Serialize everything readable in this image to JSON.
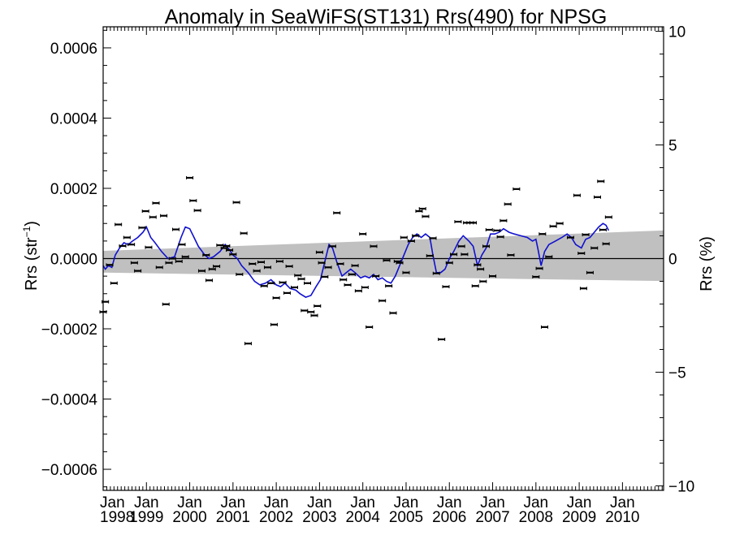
{
  "chart_data": {
    "type": "scatter",
    "title": "Anomaly in SeaWiFS(ST131) Rrs(490) for NPSG",
    "ylabel_left_main": "Rrs (str",
    "ylabel_left_sup": "−1",
    "ylabel_left_close": ")",
    "ylabel_right": "Rrs (%)",
    "xlabel": "",
    "x_range": [
      1998.0,
      2010.95
    ],
    "ylim_left": [
      -0.00066,
      0.00066
    ],
    "ylim_right": [
      -10.2,
      10.2
    ],
    "left_ticks": [
      {
        "value": 0.0006,
        "label": "0.0006"
      },
      {
        "value": 0.0004,
        "label": "0.0004"
      },
      {
        "value": 0.0002,
        "label": "0.0002"
      },
      {
        "value": 0.0,
        "label": "0.0000"
      },
      {
        "value": -0.0002,
        "label": "−0.0002"
      },
      {
        "value": -0.0004,
        "label": "−0.0004"
      },
      {
        "value": -0.0006,
        "label": "−0.0006"
      }
    ],
    "right_ticks": [
      {
        "value": 10,
        "label": "10"
      },
      {
        "value": 5,
        "label": "5"
      },
      {
        "value": 0,
        "label": "0"
      },
      {
        "value": -5,
        "label": "−5"
      },
      {
        "value": -10,
        "label": "−10"
      }
    ],
    "x_ticks": [
      {
        "value": 1998,
        "month": "Jan",
        "year": "1998"
      },
      {
        "value": 1999,
        "month": "Jan",
        "year": "1999"
      },
      {
        "value": 2000,
        "month": "Jan",
        "year": "2000"
      },
      {
        "value": 2001,
        "month": "Jan",
        "year": "2001"
      },
      {
        "value": 2002,
        "month": "Jan",
        "year": "2002"
      },
      {
        "value": 2003,
        "month": "Jan",
        "year": "2003"
      },
      {
        "value": 2004,
        "month": "Jan",
        "year": "2004"
      },
      {
        "value": 2005,
        "month": "Jan",
        "year": "2005"
      },
      {
        "value": 2006,
        "month": "Jan",
        "year": "2006"
      },
      {
        "value": 2007,
        "month": "Jan",
        "year": "2007"
      },
      {
        "value": 2008,
        "month": "Jan",
        "year": "2008"
      },
      {
        "value": 2009,
        "month": "Jan",
        "year": "2009"
      },
      {
        "value": 2010,
        "month": "Jan",
        "year": "2010"
      }
    ],
    "zero_line": 0,
    "confidence_band": {
      "start": {
        "x": 1998.0,
        "upper": 2.2e-05,
        "lower": -4e-05
      },
      "end": {
        "x": 2010.95,
        "upper": 8e-05,
        "lower": -6.4e-05
      }
    },
    "colors": {
      "running_mean": "#1010d0",
      "points": "#000000",
      "band": "#c0c0c0",
      "zero_line": "#000000"
    },
    "points": [
      {
        "x": 1998.0,
        "y": -0.000152
      },
      {
        "x": 1998.05,
        "y": -0.000123
      },
      {
        "x": 1998.15,
        "y": -1.8e-05
      },
      {
        "x": 1998.25,
        "y": -7e-05
      },
      {
        "x": 1998.35,
        "y": 9.7e-05
      },
      {
        "x": 1998.45,
        "y": 3.6e-05
      },
      {
        "x": 1998.55,
        "y": 6e-05
      },
      {
        "x": 1998.65,
        "y": 4e-05
      },
      {
        "x": 1998.72,
        "y": -1.2e-05
      },
      {
        "x": 1998.8,
        "y": -3.5e-05
      },
      {
        "x": 1998.9,
        "y": 8.8e-05
      },
      {
        "x": 1998.98,
        "y": 0.000135
      },
      {
        "x": 1999.05,
        "y": 3.2e-05
      },
      {
        "x": 1999.15,
        "y": 0.000118
      },
      {
        "x": 1999.22,
        "y": 0.000158
      },
      {
        "x": 1999.3,
        "y": -2.5e-05
      },
      {
        "x": 1999.4,
        "y": 0.000122
      },
      {
        "x": 1999.45,
        "y": -0.00013
      },
      {
        "x": 1999.52,
        "y": -1.2e-05
      },
      {
        "x": 1999.6,
        "y": 0.0
      },
      {
        "x": 1999.68,
        "y": 8.3e-05
      },
      {
        "x": 1999.75,
        "y": -8e-06
      },
      {
        "x": 1999.82,
        "y": 4e-05
      },
      {
        "x": 1999.9,
        "y": 5e-06
      },
      {
        "x": 2000.0,
        "y": 0.00023
      },
      {
        "x": 2000.08,
        "y": 0.000165
      },
      {
        "x": 2000.18,
        "y": 0.000137
      },
      {
        "x": 2000.28,
        "y": -3.5e-05
      },
      {
        "x": 2000.38,
        "y": 1e-05
      },
      {
        "x": 2000.45,
        "y": -6.2e-05
      },
      {
        "x": 2000.52,
        "y": -3e-05
      },
      {
        "x": 2000.62,
        "y": -2.2e-05
      },
      {
        "x": 2000.7,
        "y": 3.8e-05
      },
      {
        "x": 2000.8,
        "y": 3e-05
      },
      {
        "x": 2000.85,
        "y": 3.6e-05
      },
      {
        "x": 2000.92,
        "y": 2.4e-05
      },
      {
        "x": 2001.0,
        "y": 1.2e-05
      },
      {
        "x": 2001.08,
        "y": 0.00016
      },
      {
        "x": 2001.15,
        "y": -4.5e-05
      },
      {
        "x": 2001.25,
        "y": 7.2e-05
      },
      {
        "x": 2001.35,
        "y": -0.000242
      },
      {
        "x": 2001.45,
        "y": -1.5e-05
      },
      {
        "x": 2001.55,
        "y": -3.5e-05
      },
      {
        "x": 2001.65,
        "y": -1e-05
      },
      {
        "x": 2001.72,
        "y": -7.8e-05
      },
      {
        "x": 2001.8,
        "y": -2.5e-05
      },
      {
        "x": 2001.88,
        "y": -7e-05
      },
      {
        "x": 2001.95,
        "y": -0.000188
      },
      {
        "x": 2002.0,
        "y": -0.000112
      },
      {
        "x": 2002.08,
        "y": -8e-06
      },
      {
        "x": 2002.15,
        "y": -6.8e-05
      },
      {
        "x": 2002.25,
        "y": -9.8e-05
      },
      {
        "x": 2002.3,
        "y": -2.2e-05
      },
      {
        "x": 2002.42,
        "y": -8.2e-05
      },
      {
        "x": 2002.5,
        "y": -4.8e-05
      },
      {
        "x": 2002.58,
        "y": -5.8e-05
      },
      {
        "x": 2002.65,
        "y": -0.000148
      },
      {
        "x": 2002.72,
        "y": -7e-05
      },
      {
        "x": 2002.8,
        "y": -0.000152
      },
      {
        "x": 2002.88,
        "y": -0.000162
      },
      {
        "x": 2002.95,
        "y": -0.000135
      },
      {
        "x": 2003.0,
        "y": 1.8e-05
      },
      {
        "x": 2003.05,
        "y": -1.2e-05
      },
      {
        "x": 2003.12,
        "y": -5.2e-05
      },
      {
        "x": 2003.2,
        "y": -2.5e-05
      },
      {
        "x": 2003.3,
        "y": 3.5e-05
      },
      {
        "x": 2003.4,
        "y": 0.00013
      },
      {
        "x": 2003.48,
        "y": -1.5e-05
      },
      {
        "x": 2003.55,
        "y": -6e-05
      },
      {
        "x": 2003.65,
        "y": -7.5e-05
      },
      {
        "x": 2003.75,
        "y": -4.5e-05
      },
      {
        "x": 2003.82,
        "y": -2e-05
      },
      {
        "x": 2003.9,
        "y": -9.2e-05
      },
      {
        "x": 2004.0,
        "y": 7e-05
      },
      {
        "x": 2004.05,
        "y": -8.2e-05
      },
      {
        "x": 2004.15,
        "y": -0.000195
      },
      {
        "x": 2004.25,
        "y": 3.5e-05
      },
      {
        "x": 2004.3,
        "y": -5e-05
      },
      {
        "x": 2004.45,
        "y": -0.00012
      },
      {
        "x": 2004.55,
        "y": -5e-06
      },
      {
        "x": 2004.6,
        "y": -7.8e-05
      },
      {
        "x": 2004.7,
        "y": -0.000155
      },
      {
        "x": 2004.8,
        "y": -8e-06
      },
      {
        "x": 2004.85,
        "y": -1.2e-05
      },
      {
        "x": 2004.95,
        "y": 6e-05
      },
      {
        "x": 2005.0,
        "y": -4e-05
      },
      {
        "x": 2005.12,
        "y": 5e-05
      },
      {
        "x": 2005.22,
        "y": 6.5e-05
      },
      {
        "x": 2005.3,
        "y": 0.000135
      },
      {
        "x": 2005.38,
        "y": 0.000142
      },
      {
        "x": 2005.45,
        "y": 0.00012
      },
      {
        "x": 2005.55,
        "y": 8e-06
      },
      {
        "x": 2005.62,
        "y": 5.8e-05
      },
      {
        "x": 2005.7,
        "y": -4.2e-05
      },
      {
        "x": 2005.82,
        "y": -0.00023
      },
      {
        "x": 2005.92,
        "y": -8e-05
      },
      {
        "x": 2006.0,
        "y": -1.2e-05
      },
      {
        "x": 2006.1,
        "y": 1.2e-05
      },
      {
        "x": 2006.2,
        "y": 0.000105
      },
      {
        "x": 2006.28,
        "y": 3.5e-05
      },
      {
        "x": 2006.35,
        "y": 1.2e-05
      },
      {
        "x": 2006.4,
        "y": 0.000102
      },
      {
        "x": 2006.48,
        "y": 0.000102
      },
      {
        "x": 2006.55,
        "y": 0.000102
      },
      {
        "x": 2006.6,
        "y": -7.8e-05
      },
      {
        "x": 2006.65,
        "y": -1.8e-05
      },
      {
        "x": 2006.72,
        "y": -3e-05
      },
      {
        "x": 2006.78,
        "y": -6.5e-05
      },
      {
        "x": 2006.85,
        "y": 3.5e-05
      },
      {
        "x": 2006.92,
        "y": 8.2e-05
      },
      {
        "x": 2007.0,
        "y": -5e-05
      },
      {
        "x": 2007.1,
        "y": 8e-05
      },
      {
        "x": 2007.18,
        "y": 6.2e-05
      },
      {
        "x": 2007.25,
        "y": 0.000108
      },
      {
        "x": 2007.35,
        "y": 0.000155
      },
      {
        "x": 2007.42,
        "y": 1e-05
      },
      {
        "x": 2007.55,
        "y": 0.000198
      },
      {
        "x": 2008.0,
        "y": -5.2e-05
      },
      {
        "x": 2008.08,
        "y": -2.8e-05
      },
      {
        "x": 2008.15,
        "y": 7e-05
      },
      {
        "x": 2008.2,
        "y": -0.000195
      },
      {
        "x": 2008.3,
        "y": 5e-06
      },
      {
        "x": 2008.4,
        "y": 9.2e-05
      },
      {
        "x": 2008.55,
        "y": 0.0001
      },
      {
        "x": 2008.8,
        "y": 6e-05
      },
      {
        "x": 2008.95,
        "y": 0.00018
      },
      {
        "x": 2009.05,
        "y": 1.5e-05
      },
      {
        "x": 2009.1,
        "y": -8.5e-05
      },
      {
        "x": 2009.15,
        "y": 6.8e-05
      },
      {
        "x": 2009.25,
        "y": -4e-05
      },
      {
        "x": 2009.35,
        "y": 3e-05
      },
      {
        "x": 2009.42,
        "y": 0.000175
      },
      {
        "x": 2009.5,
        "y": 0.00022
      },
      {
        "x": 2009.55,
        "y": 8.2e-05
      },
      {
        "x": 2009.62,
        "y": 4.2e-05
      },
      {
        "x": 2009.68,
        "y": 0.000118
      }
    ],
    "running_mean": [
      {
        "x": 1998.0,
        "y": -2e-05
      },
      {
        "x": 1998.05,
        "y": -3e-05
      },
      {
        "x": 1998.12,
        "y": -2e-05
      },
      {
        "x": 1998.2,
        "y": -2.5e-05
      },
      {
        "x": 1998.28,
        "y": 1e-05
      },
      {
        "x": 1998.38,
        "y": 3e-05
      },
      {
        "x": 1998.48,
        "y": 4.5e-05
      },
      {
        "x": 1998.58,
        "y": 4e-05
      },
      {
        "x": 1998.68,
        "y": 5e-05
      },
      {
        "x": 1998.8,
        "y": 6e-05
      },
      {
        "x": 1998.92,
        "y": 7.5e-05
      },
      {
        "x": 1999.0,
        "y": 9e-05
      },
      {
        "x": 1999.1,
        "y": 6e-05
      },
      {
        "x": 1999.2,
        "y": 4.5e-05
      },
      {
        "x": 1999.35,
        "y": 2e-05
      },
      {
        "x": 1999.5,
        "y": 0.0
      },
      {
        "x": 1999.65,
        "y": 5e-06
      },
      {
        "x": 1999.8,
        "y": 6e-05
      },
      {
        "x": 1999.9,
        "y": 9e-05
      },
      {
        "x": 2000.0,
        "y": 8.5e-05
      },
      {
        "x": 2000.1,
        "y": 6e-05
      },
      {
        "x": 2000.2,
        "y": 3.5e-05
      },
      {
        "x": 2000.35,
        "y": 1e-05
      },
      {
        "x": 2000.45,
        "y": 0.0
      },
      {
        "x": 2000.55,
        "y": 5e-06
      },
      {
        "x": 2000.7,
        "y": 2e-05
      },
      {
        "x": 2000.82,
        "y": 4e-05
      },
      {
        "x": 2000.92,
        "y": 2.5e-05
      },
      {
        "x": 2001.0,
        "y": 1e-05
      },
      {
        "x": 2001.1,
        "y": 0.0
      },
      {
        "x": 2001.2,
        "y": -2e-05
      },
      {
        "x": 2001.35,
        "y": -4e-05
      },
      {
        "x": 2001.5,
        "y": -6.5e-05
      },
      {
        "x": 2001.62,
        "y": -7.5e-05
      },
      {
        "x": 2001.75,
        "y": -7e-05
      },
      {
        "x": 2001.88,
        "y": -6e-05
      },
      {
        "x": 2002.0,
        "y": -7.5e-05
      },
      {
        "x": 2002.1,
        "y": -8e-05
      },
      {
        "x": 2002.2,
        "y": -7e-05
      },
      {
        "x": 2002.32,
        "y": -8.5e-05
      },
      {
        "x": 2002.45,
        "y": -9e-05
      },
      {
        "x": 2002.55,
        "y": -0.0001
      },
      {
        "x": 2002.68,
        "y": -0.00011
      },
      {
        "x": 2002.8,
        "y": -0.000105
      },
      {
        "x": 2002.92,
        "y": -8e-05
      },
      {
        "x": 2003.02,
        "y": -6e-05
      },
      {
        "x": 2003.12,
        "y": -1e-05
      },
      {
        "x": 2003.22,
        "y": 4e-05
      },
      {
        "x": 2003.3,
        "y": 3e-05
      },
      {
        "x": 2003.4,
        "y": -1e-05
      },
      {
        "x": 2003.52,
        "y": -5e-05
      },
      {
        "x": 2003.62,
        "y": -4e-05
      },
      {
        "x": 2003.72,
        "y": -3e-05
      },
      {
        "x": 2003.82,
        "y": -4e-05
      },
      {
        "x": 2003.95,
        "y": -5.5e-05
      },
      {
        "x": 2004.05,
        "y": -5e-05
      },
      {
        "x": 2004.15,
        "y": -5.5e-05
      },
      {
        "x": 2004.25,
        "y": -4.5e-05
      },
      {
        "x": 2004.35,
        "y": -6e-05
      },
      {
        "x": 2004.45,
        "y": -5.5e-05
      },
      {
        "x": 2004.55,
        "y": -6.5e-05
      },
      {
        "x": 2004.65,
        "y": -7e-05
      },
      {
        "x": 2004.75,
        "y": -5e-05
      },
      {
        "x": 2004.85,
        "y": -2e-05
      },
      {
        "x": 2004.95,
        "y": 1e-05
      },
      {
        "x": 2005.05,
        "y": 4e-05
      },
      {
        "x": 2005.15,
        "y": 6e-05
      },
      {
        "x": 2005.25,
        "y": 7e-05
      },
      {
        "x": 2005.35,
        "y": 6e-05
      },
      {
        "x": 2005.45,
        "y": 7e-05
      },
      {
        "x": 2005.55,
        "y": 6e-05
      },
      {
        "x": 2005.62,
        "y": 1e-05
      },
      {
        "x": 2005.7,
        "y": -4e-05
      },
      {
        "x": 2005.8,
        "y": -4e-05
      },
      {
        "x": 2005.9,
        "y": -3e-05
      },
      {
        "x": 2006.0,
        "y": 0.0
      },
      {
        "x": 2006.1,
        "y": 2e-05
      },
      {
        "x": 2006.22,
        "y": 5e-05
      },
      {
        "x": 2006.32,
        "y": 6.5e-05
      },
      {
        "x": 2006.45,
        "y": 5e-05
      },
      {
        "x": 2006.55,
        "y": 3.5e-05
      },
      {
        "x": 2006.65,
        "y": -2e-05
      },
      {
        "x": 2006.75,
        "y": 1e-05
      },
      {
        "x": 2006.85,
        "y": 3e-05
      },
      {
        "x": 2006.95,
        "y": 7e-05
      },
      {
        "x": 2007.05,
        "y": 7e-05
      },
      {
        "x": 2007.15,
        "y": 7.5e-05
      },
      {
        "x": 2007.25,
        "y": 8.5e-05
      },
      {
        "x": 2007.38,
        "y": 7.5e-05
      },
      {
        "x": 2007.5,
        "y": 7e-05
      },
      {
        "x": 2007.65,
        "y": 6.5e-05
      },
      {
        "x": 2007.8,
        "y": 6e-05
      },
      {
        "x": 2007.92,
        "y": 5e-05
      },
      {
        "x": 2008.0,
        "y": 5.5e-05
      },
      {
        "x": 2008.05,
        "y": 2.5e-05
      },
      {
        "x": 2008.12,
        "y": -2e-05
      },
      {
        "x": 2008.2,
        "y": 2e-05
      },
      {
        "x": 2008.3,
        "y": 4e-05
      },
      {
        "x": 2008.45,
        "y": 5e-05
      },
      {
        "x": 2008.6,
        "y": 6e-05
      },
      {
        "x": 2008.72,
        "y": 7e-05
      },
      {
        "x": 2008.82,
        "y": 6e-05
      },
      {
        "x": 2008.92,
        "y": 4e-05
      },
      {
        "x": 2009.05,
        "y": 3e-05
      },
      {
        "x": 2009.15,
        "y": 5.5e-05
      },
      {
        "x": 2009.25,
        "y": 6e-05
      },
      {
        "x": 2009.35,
        "y": 7.5e-05
      },
      {
        "x": 2009.45,
        "y": 9e-05
      },
      {
        "x": 2009.55,
        "y": 0.0001
      },
      {
        "x": 2009.62,
        "y": 9.5e-05
      },
      {
        "x": 2009.68,
        "y": 8e-05
      }
    ]
  }
}
